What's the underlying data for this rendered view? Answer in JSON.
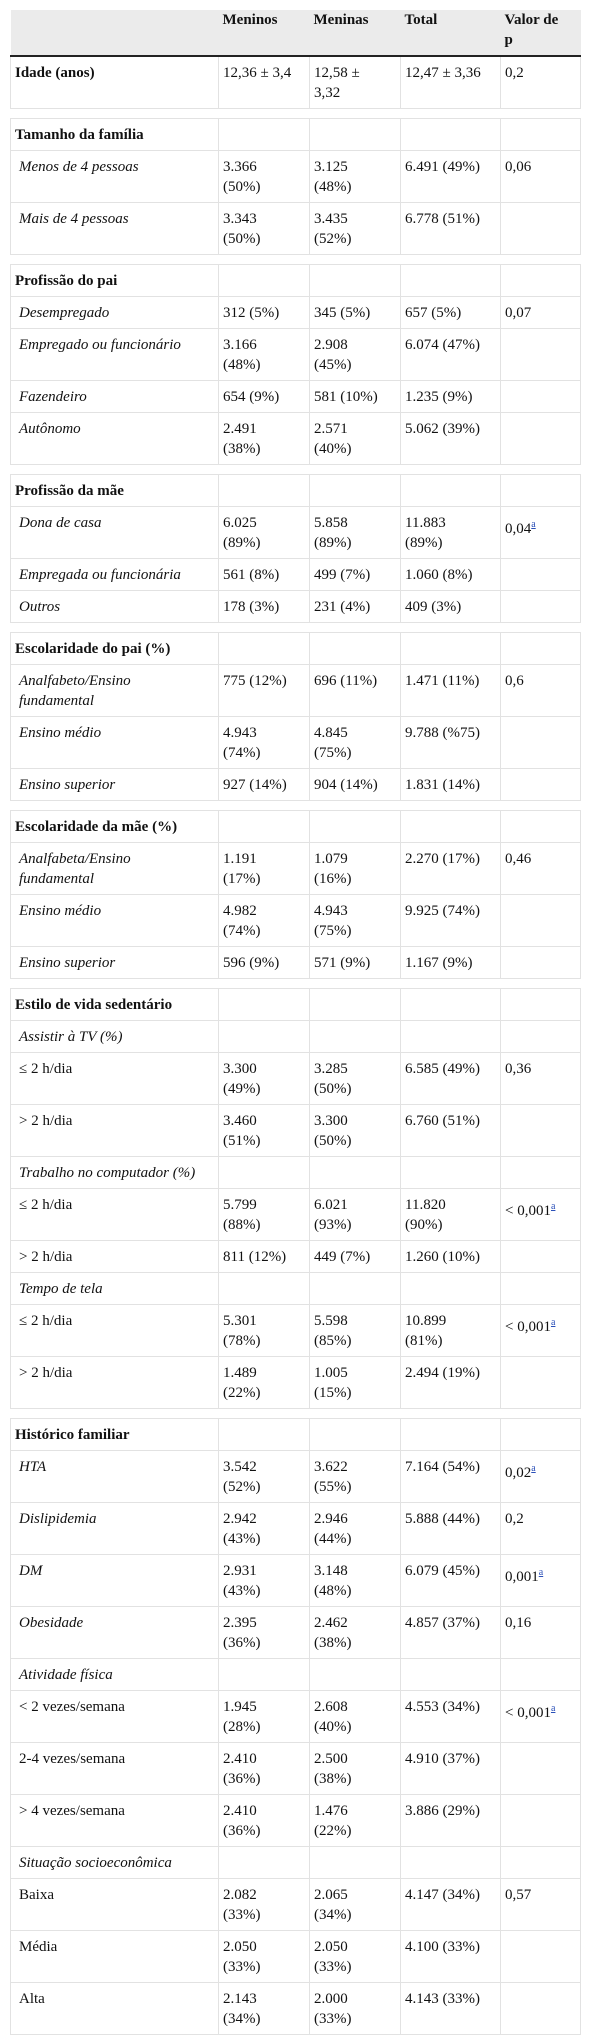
{
  "table": {
    "header": [
      "Meninos",
      "Meninas",
      "Total",
      "Valor de p"
    ],
    "rows": [
      {
        "kind": "section",
        "label": "Idade (anos)",
        "cells": [
          "12,36 ± 3,4",
          "12,58 ± 3,32",
          "12,47 ± 3,36"
        ],
        "p": "0,2"
      },
      {
        "kind": "section",
        "label": "Tamanho da família"
      },
      {
        "kind": "item",
        "label": "Menos de 4 pessoas",
        "cells": [
          "3.366 (50%)",
          "3.125 (48%)",
          "6.491 (49%)"
        ],
        "p": "0,06"
      },
      {
        "kind": "item",
        "label": "Mais de 4 pessoas",
        "cells": [
          "3.343 (50%)",
          "3.435 (52%)",
          "6.778 (51%)"
        ]
      },
      {
        "kind": "section",
        "label": "Profissão do pai"
      },
      {
        "kind": "item",
        "label": "Desempregado",
        "cells": [
          "312 (5%)",
          "345 (5%)",
          "657 (5%)"
        ],
        "p": "0,07"
      },
      {
        "kind": "item",
        "label": "Empregado ou funcionário",
        "cells": [
          "3.166 (48%)",
          "2.908 (45%)",
          "6.074 (47%)"
        ]
      },
      {
        "kind": "item",
        "label": "Fazendeiro",
        "cells": [
          "654 (9%)",
          "581 (10%)",
          "1.235 (9%)"
        ]
      },
      {
        "kind": "item",
        "label": "Autônomo",
        "cells": [
          "2.491 (38%)",
          "2.571 (40%)",
          "5.062 (39%)"
        ]
      },
      {
        "kind": "section",
        "label": "Profissão da mãe"
      },
      {
        "kind": "item",
        "label": "Dona de casa",
        "cells": [
          "6.025 (89%)",
          "5.858 (89%)",
          "11.883 (89%)"
        ],
        "p": "0,04",
        "note": "a"
      },
      {
        "kind": "item",
        "label": "Empregada ou funcionária",
        "cells": [
          "561 (8%)",
          "499 (7%)",
          "1.060 (8%)"
        ]
      },
      {
        "kind": "item",
        "label": "Outros",
        "cells": [
          "178 (3%)",
          "231 (4%)",
          "409 (3%)"
        ]
      },
      {
        "kind": "section",
        "label": "Escolaridade do pai (%)"
      },
      {
        "kind": "item",
        "label": "Analfabeto/Ensino fundamental",
        "cells": [
          "775 (12%)",
          "696 (11%)",
          "1.471 (11%)"
        ],
        "p": "0,6"
      },
      {
        "kind": "item",
        "label": "Ensino médio",
        "cells": [
          "4.943 (74%)",
          "4.845 (75%)",
          "9.788 (%75)"
        ]
      },
      {
        "kind": "item",
        "label": "Ensino superior",
        "cells": [
          "927 (14%)",
          "904 (14%)",
          "1.831 (14%)"
        ]
      },
      {
        "kind": "section",
        "label": "Escolaridade da mãe (%)"
      },
      {
        "kind": "item",
        "label": "Analfabeta/Ensino fundamental",
        "cells": [
          "1.191 (17%)",
          "1.079 (16%)",
          "2.270 (17%)"
        ],
        "p": "0,46"
      },
      {
        "kind": "item",
        "label": "Ensino médio",
        "cells": [
          "4.982 (74%)",
          "4.943 (75%)",
          "9.925 (74%)"
        ]
      },
      {
        "kind": "item",
        "label": "Ensino superior",
        "cells": [
          "596 (9%)",
          "571 (9%)",
          "1.167 (9%)"
        ]
      },
      {
        "kind": "section",
        "label": "Estilo de vida sedentário"
      },
      {
        "kind": "subsection",
        "label": "Assistir à TV (%)"
      },
      {
        "kind": "level",
        "label": "≤ 2 h/dia",
        "cells": [
          "3.300 (49%)",
          "3.285 (50%)",
          "6.585 (49%)"
        ],
        "p": "0,36"
      },
      {
        "kind": "level",
        "label": "> 2 h/dia",
        "cells": [
          "3.460 (51%)",
          "3.300 (50%)",
          "6.760 (51%)"
        ]
      },
      {
        "kind": "subsection",
        "label": "Trabalho no computador (%)"
      },
      {
        "kind": "level",
        "label": "≤ 2 h/dia",
        "cells": [
          "5.799 (88%)",
          "6.021 (93%)",
          "11.820 (90%)"
        ],
        "p": "< 0,001",
        "note": "a"
      },
      {
        "kind": "level",
        "label": "> 2 h/dia",
        "cells": [
          "811 (12%)",
          "449 (7%)",
          "1.260 (10%)"
        ]
      },
      {
        "kind": "subsection",
        "label": "Tempo de tela"
      },
      {
        "kind": "level",
        "label": "≤ 2 h/dia",
        "cells": [
          "5.301 (78%)",
          "5.598 (85%)",
          "10.899 (81%)"
        ],
        "p": "< 0,001",
        "note": "a"
      },
      {
        "kind": "level",
        "label": "> 2 h/dia",
        "cells": [
          "1.489 (22%)",
          "1.005 (15%)",
          "2.494 (19%)"
        ]
      },
      {
        "kind": "section",
        "label": "Histórico familiar"
      },
      {
        "kind": "item",
        "label": "HTA",
        "cells": [
          "3.542 (52%)",
          "3.622 (55%)",
          "7.164 (54%)"
        ],
        "p": "0,02",
        "note": "a"
      },
      {
        "kind": "item",
        "label": "Dislipidemia",
        "cells": [
          "2.942 (43%)",
          "2.946 (44%)",
          "5.888 (44%)"
        ],
        "p": "0,2"
      },
      {
        "kind": "item",
        "label": "DM",
        "cells": [
          "2.931 (43%)",
          "3.148 (48%)",
          "6.079 (45%)"
        ],
        "p": "0,001",
        "note": "a"
      },
      {
        "kind": "item",
        "label": "Obesidade",
        "cells": [
          "2.395 (36%)",
          "2.462 (38%)",
          "4.857 (37%)"
        ],
        "p": "0,16"
      },
      {
        "kind": "subsection",
        "label": "Atividade física"
      },
      {
        "kind": "level",
        "label": "< 2 vezes/semana",
        "cells": [
          "1.945 (28%)",
          "2.608 (40%)",
          "4.553 (34%)"
        ],
        "p": "< 0,001",
        "note": "a"
      },
      {
        "kind": "level",
        "label": "2-4 vezes/semana",
        "cells": [
          "2.410 (36%)",
          "2.500 (38%)",
          "4.910 (37%)"
        ]
      },
      {
        "kind": "level",
        "label": "> 4 vezes/semana",
        "cells": [
          "2.410 (36%)",
          "1.476 (22%)",
          "3.886 (29%)"
        ]
      },
      {
        "kind": "subsection",
        "label": "Situação socioeconômica"
      },
      {
        "kind": "level",
        "label": "Baixa",
        "cells": [
          "2.082 (33%)",
          "2.065 (34%)",
          "4.147 (34%)"
        ],
        "p": "0,57"
      },
      {
        "kind": "level",
        "label": "Média",
        "cells": [
          "2.050 (33%)",
          "2.050 (33%)",
          "4.100 (33%)"
        ]
      },
      {
        "kind": "level",
        "label": "Alta",
        "cells": [
          "2.143 (34%)",
          "2.000 (33%)",
          "4.143 (33%)"
        ]
      }
    ]
  }
}
